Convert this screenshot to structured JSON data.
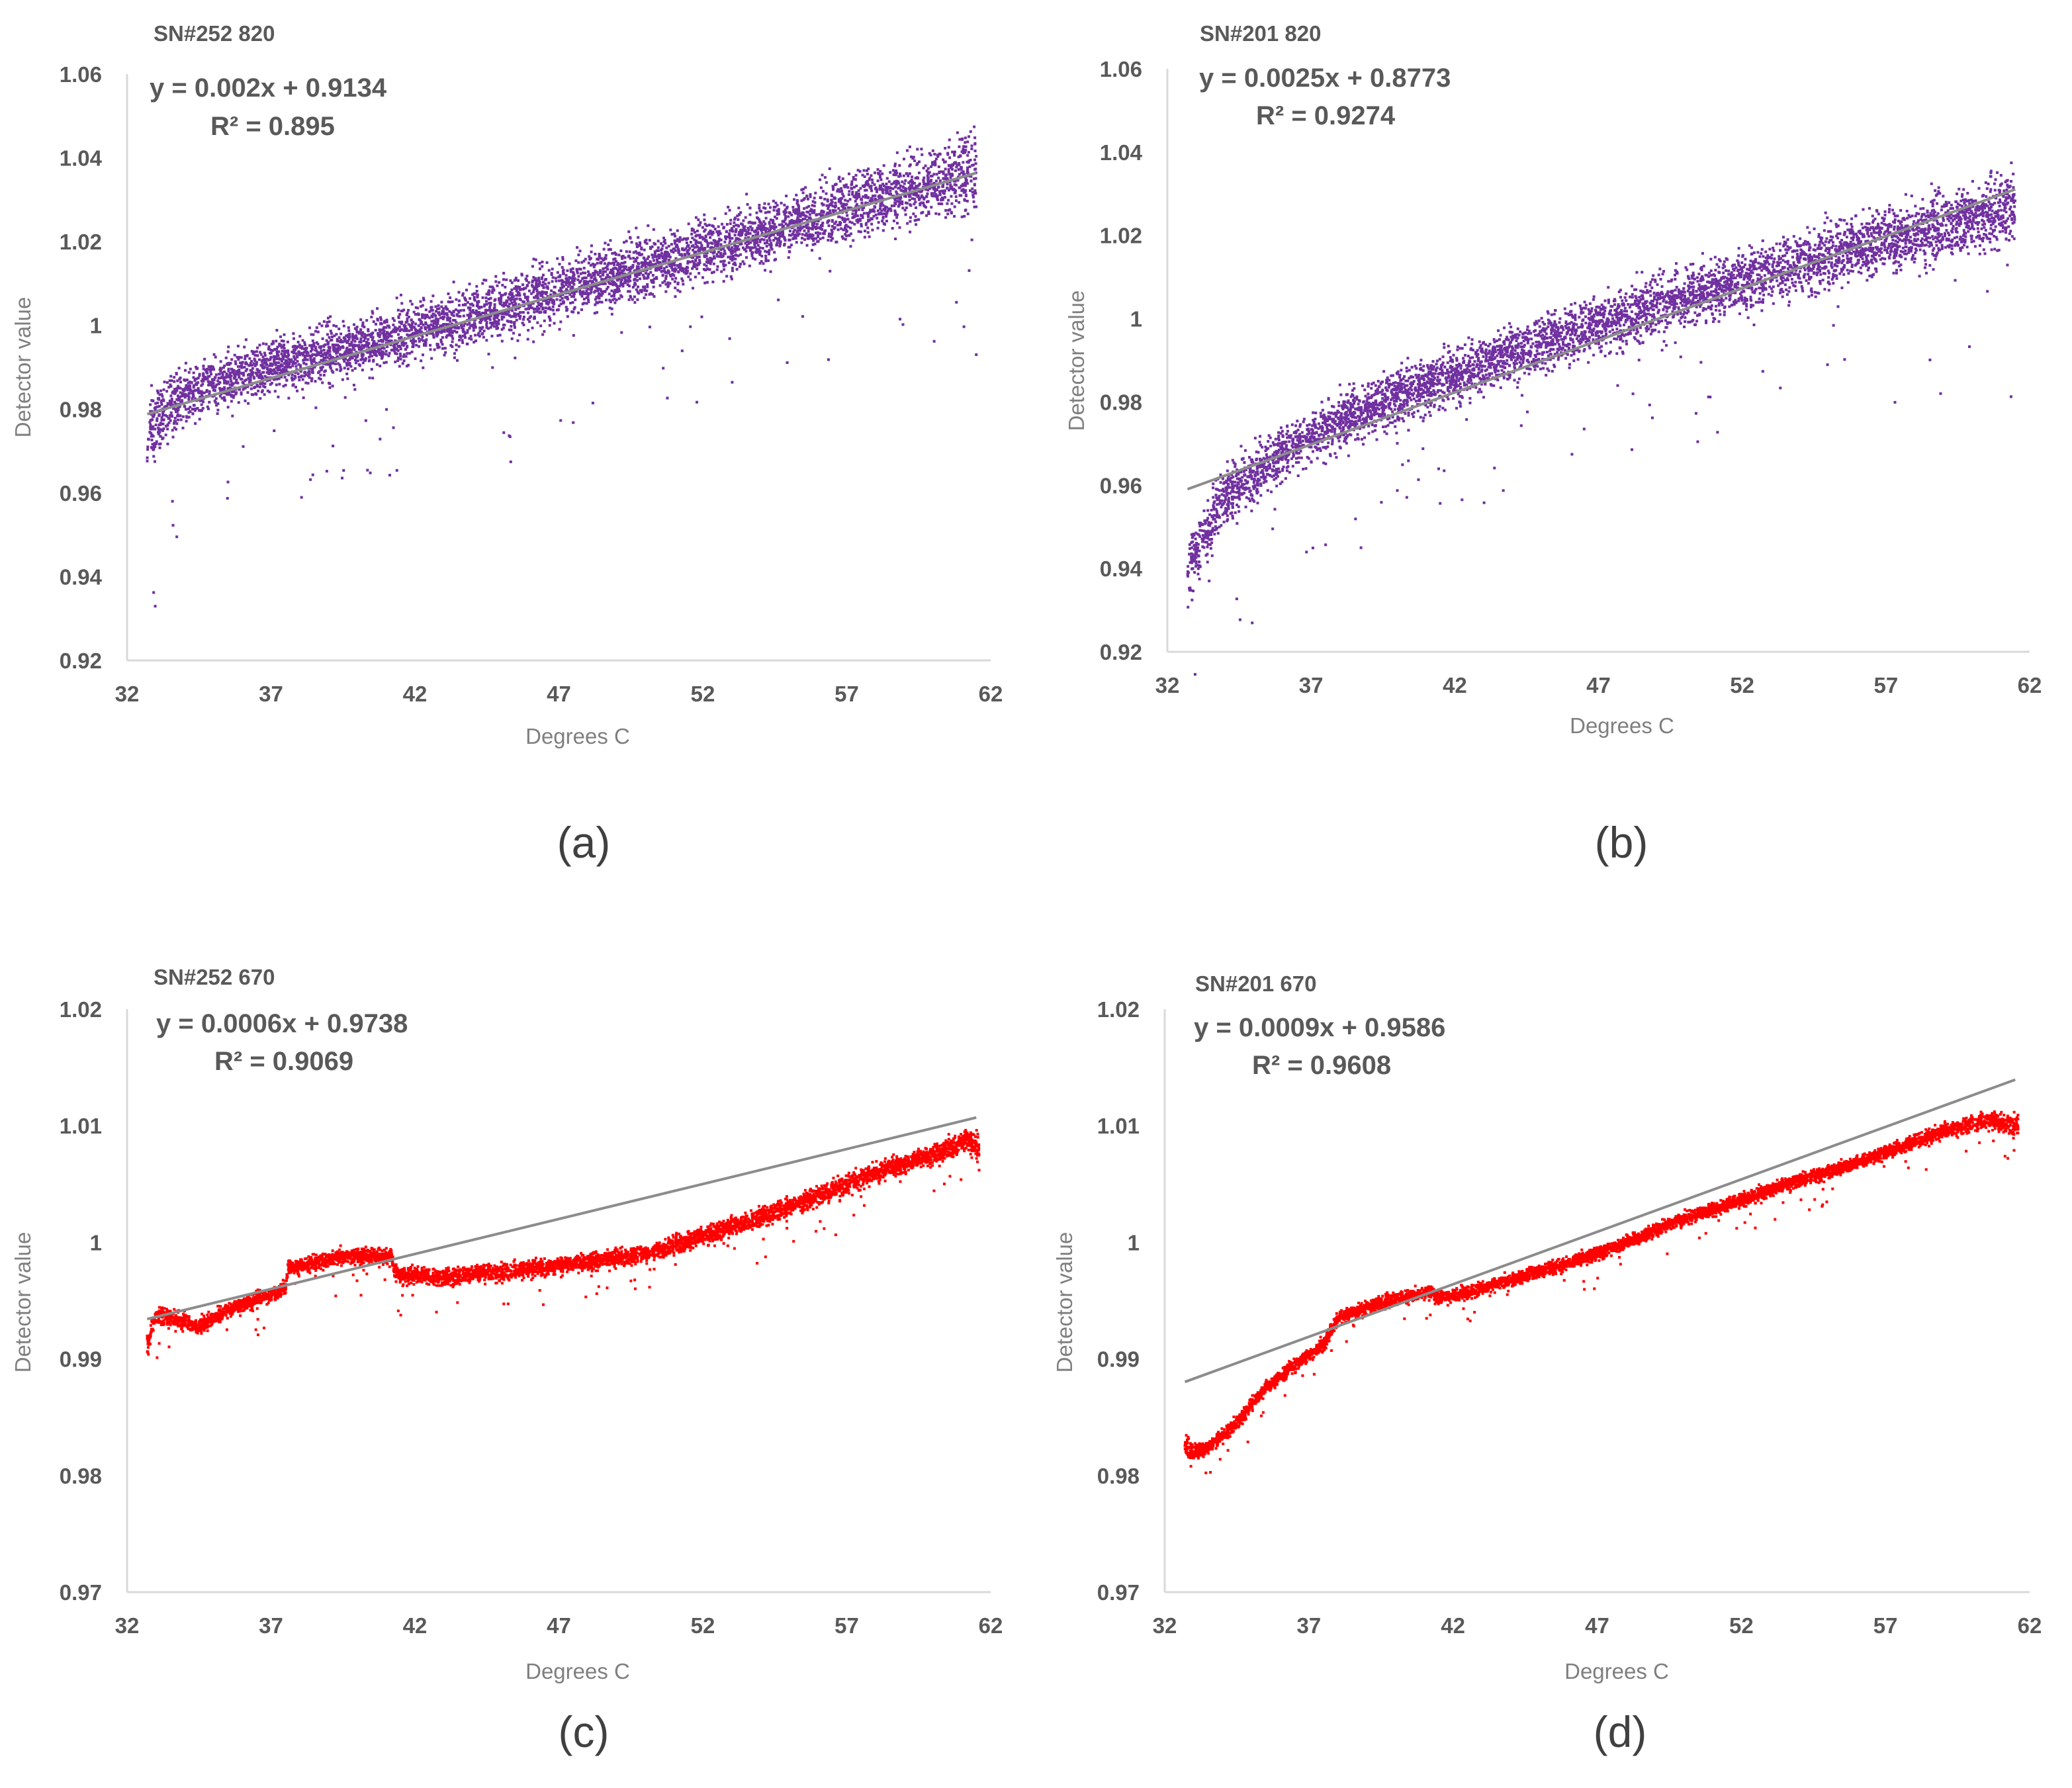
{
  "chart_data": [
    {
      "type": "scatter",
      "title": "SN#252 820",
      "panel_label": "(a)",
      "xlabel": "Degrees C",
      "ylabel": "Detector value",
      "xlim": [
        32,
        62
      ],
      "ylim": [
        0.92,
        1.06
      ],
      "x_ticks": [
        32,
        37,
        42,
        47,
        52,
        57,
        62
      ],
      "x_tick_labels": [
        "32",
        "37",
        "42",
        "47",
        "52",
        "57",
        "62"
      ],
      "y_ticks": [
        0.92,
        0.94,
        0.96,
        0.98,
        1.0,
        1.02,
        1.04,
        1.06
      ],
      "y_tick_labels": [
        "0.92",
        "0.94",
        "0.96",
        "0.98",
        "1",
        "1.02",
        "1.04",
        "1.06"
      ],
      "marker_color": "#7030a0",
      "trendline_color": "#8c8c8c",
      "trendline": {
        "slope": 0.002,
        "intercept": 0.9134,
        "x_range": [
          32.7,
          61.5
        ]
      },
      "equation_text": "y = 0.002x + 0.9134",
      "r2_text": "R² = 0.895",
      "series": [
        {
          "name": "Detector value",
          "band": {
            "x": [
              32.7,
              33.5,
              35,
              37,
              40,
              45,
              50,
              55,
              60,
              61.5
            ],
            "center": [
              0.974,
              0.981,
              0.986,
              0.99,
              0.995,
              1.004,
              1.014,
              1.024,
              1.034,
              1.037
            ],
            "half_width": [
              0.012,
              0.009,
              0.008,
              0.008,
              0.008,
              0.009,
              0.009,
              0.009,
              0.01,
              0.013
            ]
          }
        }
      ]
    },
    {
      "type": "scatter",
      "title": "SN#201 820",
      "panel_label": "(b)",
      "xlabel": "Degrees C",
      "ylabel": "Detector value",
      "xlim": [
        32,
        62
      ],
      "ylim": [
        0.92,
        1.06
      ],
      "x_ticks": [
        32,
        37,
        42,
        47,
        52,
        57,
        62
      ],
      "x_tick_labels": [
        "32",
        "37",
        "42",
        "47",
        "52",
        "57",
        "62"
      ],
      "y_ticks": [
        0.92,
        0.94,
        0.96,
        0.98,
        1.0,
        1.02,
        1.04,
        1.06
      ],
      "y_tick_labels": [
        "0.92",
        "0.94",
        "0.96",
        "0.98",
        "1",
        "1.02",
        "1.04",
        "1.06"
      ],
      "marker_color": "#7030a0",
      "trendline_color": "#8c8c8c",
      "trendline": {
        "slope": 0.0025,
        "intercept": 0.8773,
        "x_range": [
          32.7,
          61.5
        ]
      },
      "equation_text": "y = 0.0025x + 0.8773",
      "r2_text": "R² = 0.9274",
      "series": [
        {
          "name": "Detector value",
          "band": {
            "x": [
              32.7,
              33.2,
              34,
              35,
              37,
              40,
              45,
              50,
              55,
              60,
              61.5
            ],
            "center": [
              0.938,
              0.948,
              0.957,
              0.963,
              0.972,
              0.981,
              0.994,
              1.005,
              1.015,
              1.024,
              1.027
            ],
            "half_width": [
              0.01,
              0.01,
              0.009,
              0.009,
              0.008,
              0.008,
              0.008,
              0.009,
              0.009,
              0.01,
              0.012
            ]
          }
        }
      ]
    },
    {
      "type": "scatter",
      "title": "SN#252 670",
      "panel_label": "(c)",
      "xlabel": "Degrees C",
      "ylabel": "Detector value",
      "xlim": [
        32,
        62
      ],
      "ylim": [
        0.97,
        1.02
      ],
      "x_ticks": [
        32,
        37,
        42,
        47,
        52,
        57,
        62
      ],
      "x_tick_labels": [
        "32",
        "37",
        "42",
        "47",
        "52",
        "57",
        "62"
      ],
      "y_ticks": [
        0.97,
        0.98,
        0.99,
        1.0,
        1.01,
        1.02
      ],
      "y_tick_labels": [
        "0.97",
        "0.98",
        "0.99",
        "1",
        "1.01",
        "1.02"
      ],
      "marker_color": "#ff0000",
      "trendline_color": "#8c8c8c",
      "trendline": {
        "slope": 0.0006,
        "intercept": 0.9738,
        "x_range": [
          32.7,
          61.5
        ]
      },
      "equation_text": "y = 0.0006x + 0.9738",
      "r2_text": "R² = 0.9069",
      "series": [
        {
          "name": "Detector value",
          "band": {
            "x": [
              32.7,
              33.0,
              33.5,
              34.5,
              35.5,
              37.5,
              37.6,
              39.5,
              41.2,
              41.3,
              43,
              45,
              47,
              50,
              52,
              55,
              58,
              60,
              61.2,
              61.6
            ],
            "center": [
              0.9912,
              0.9938,
              0.9935,
              0.9928,
              0.9942,
              0.996,
              0.9978,
              0.9988,
              0.9988,
              0.9973,
              0.997,
              0.9975,
              0.998,
              0.999,
              1.0005,
              1.003,
              1.006,
              1.0075,
              1.0088,
              1.008
            ],
            "half_width": [
              0.0015,
              0.001,
              0.0009,
              0.0008,
              0.0008,
              0.0008,
              0.0008,
              0.0008,
              0.0008,
              0.0009,
              0.0009,
              0.0009,
              0.0009,
              0.0009,
              0.001,
              0.001,
              0.001,
              0.001,
              0.0012,
              0.0018
            ]
          }
        }
      ]
    },
    {
      "type": "scatter",
      "title": "SN#201 670",
      "panel_label": "(d)",
      "xlabel": "Degrees C",
      "ylabel": "Detector value",
      "xlim": [
        32,
        62
      ],
      "ylim": [
        0.97,
        1.02
      ],
      "x_ticks": [
        32,
        37,
        42,
        47,
        52,
        57,
        62
      ],
      "x_tick_labels": [
        "32",
        "37",
        "42",
        "47",
        "52",
        "57",
        "62"
      ],
      "y_ticks": [
        0.97,
        0.98,
        0.99,
        1.0,
        1.01,
        1.02
      ],
      "y_tick_labels": [
        "0.97",
        "0.98",
        "0.99",
        "1",
        "1.01",
        "1.02"
      ],
      "marker_color": "#ff0000",
      "trendline_color": "#8c8c8c",
      "trendline": {
        "slope": 0.0009,
        "intercept": 0.9586,
        "x_range": [
          32.7,
          61.5
        ]
      },
      "equation_text": "y = 0.0009x + 0.9586",
      "r2_text": "R² = 0.9608",
      "series": [
        {
          "name": "Detector value",
          "band": {
            "x": [
              32.7,
              33.0,
              33.5,
              34.5,
              35.5,
              36.5,
              37.5,
              38.0,
              39.5,
              41.3,
              41.4,
              43,
              45,
              47,
              50,
              53,
              56,
              59,
              60.5,
              61.6
            ],
            "center": [
              0.9825,
              0.982,
              0.9823,
              0.9845,
              0.9875,
              0.9895,
              0.9912,
              0.9935,
              0.9948,
              0.9958,
              0.9952,
              0.996,
              0.9975,
              0.999,
              1.002,
              1.0045,
              1.0068,
              1.0095,
              1.0105,
              1.01
            ],
            "half_width": [
              0.0012,
              0.0008,
              0.0007,
              0.0007,
              0.0007,
              0.0007,
              0.0007,
              0.0007,
              0.0007,
              0.0007,
              0.0007,
              0.0007,
              0.0007,
              0.0007,
              0.0007,
              0.0007,
              0.0007,
              0.0008,
              0.0009,
              0.0012
            ]
          }
        }
      ]
    }
  ]
}
